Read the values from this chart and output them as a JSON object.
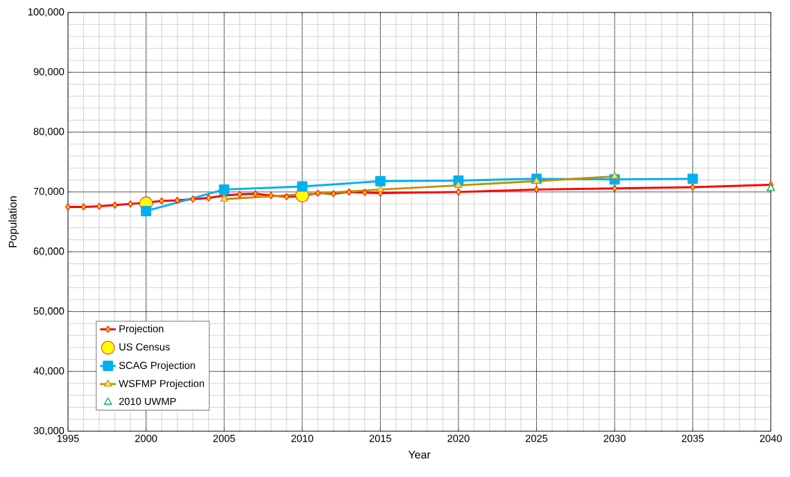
{
  "chart_data": {
    "type": "line",
    "xlabel": "Year",
    "ylabel": "Population",
    "xlim": [
      1995,
      2040
    ],
    "ylim": [
      30000,
      100000
    ],
    "xticks": [
      1995,
      2000,
      2005,
      2010,
      2015,
      2020,
      2025,
      2030,
      2035,
      2040
    ],
    "yticks": [
      {
        "value": 30000,
        "label": "30,000"
      },
      {
        "value": 40000,
        "label": "40,000"
      },
      {
        "value": 50000,
        "label": "50,000"
      },
      {
        "value": 60000,
        "label": "60,000"
      },
      {
        "value": 70000,
        "label": "70,000"
      },
      {
        "value": 80000,
        "label": "80,000"
      },
      {
        "value": 90000,
        "label": "90,000"
      },
      {
        "value": 100000,
        "label": "100,000"
      }
    ],
    "grid": true,
    "legend": "bottom left",
    "series": [
      {
        "name": "Projection",
        "marker": "diamond",
        "color": "#ff0000",
        "x": [
          1995,
          1996,
          1997,
          1998,
          1999,
          2000,
          2001,
          2002,
          2003,
          2004,
          2005,
          2006,
          2007,
          2008,
          2009,
          2010,
          2011,
          2012,
          2013,
          2014,
          2015,
          2020,
          2025,
          2030,
          2035,
          2040
        ],
        "values": [
          67500,
          67500,
          67600,
          67800,
          68000,
          68200,
          68500,
          68600,
          68800,
          69000,
          69400,
          69600,
          69700,
          69400,
          69200,
          69300,
          69800,
          69700,
          70000,
          69900,
          69800,
          70000,
          70400,
          70600,
          70800,
          71200
        ]
      },
      {
        "name": "US Census",
        "type": "scatter",
        "marker": "circle",
        "color": "#ffff00",
        "x": [
          2000,
          2010
        ],
        "values": [
          68100,
          69400
        ]
      },
      {
        "name": "SCAG Projection",
        "marker": "square",
        "color": "#00b0f0",
        "x": [
          2000,
          2005,
          2010,
          2015,
          2020,
          2025,
          2030,
          2035
        ],
        "values": [
          66800,
          70400,
          70900,
          71800,
          71900,
          72200,
          72100,
          72200
        ]
      },
      {
        "name": "WSFMP Projection",
        "marker": "triangle",
        "color": "#bf9000",
        "x": [
          2005,
          2015,
          2020,
          2025,
          2030
        ],
        "values": [
          68800,
          70400,
          71100,
          71800,
          72600
        ]
      },
      {
        "name": "2010 UWMP",
        "type": "scatter",
        "marker": "triangle",
        "color": "#00b050",
        "x": [
          2040
        ],
        "values": [
          70600
        ]
      }
    ]
  }
}
